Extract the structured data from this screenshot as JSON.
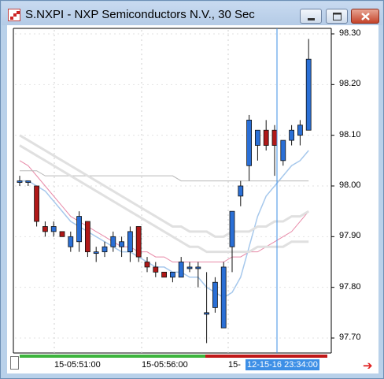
{
  "window": {
    "title": "S.NXPI - NXP Semiconductors N.V., 30 Sec",
    "icons": {
      "app": "chart-app-icon",
      "minimize": "minimize-icon",
      "maximize": "maximize-icon",
      "close": "close-icon"
    }
  },
  "axis": {
    "price_labels": [
      "98.30",
      "98.20",
      "98.10",
      "98.00",
      "97.90",
      "97.80",
      "97.70"
    ],
    "time_labels": [
      "15-05:51:00",
      "15-05:56:00",
      "15-"
    ],
    "cursor_time": "12-15-16 23:34:00",
    "next_icon": "arrow-right-icon"
  },
  "colors": {
    "up": "#2a6fd6",
    "down": "#b01818",
    "cursor_line": "#3d8fe6",
    "ma_pink": "#e88aa8",
    "ma_light_blue": "#a6c8ec",
    "ma_gray": "#b8b8b8",
    "timebar_green": "#3db43d",
    "timebar_red": "#c01818"
  },
  "chart_data": {
    "type": "candlestick",
    "price_range": [
      97.68,
      98.31
    ],
    "cursor_bar": 30,
    "candles": [
      {
        "o": 98.01,
        "h": 98.02,
        "l": 98.0,
        "c": 98.01
      },
      {
        "o": 98.01,
        "h": 98.01,
        "l": 98.0,
        "c": 98.01
      },
      {
        "o": 98.0,
        "h": 98.0,
        "l": 97.92,
        "c": 97.93
      },
      {
        "o": 97.92,
        "h": 97.93,
        "l": 97.9,
        "c": 97.91
      },
      {
        "o": 97.91,
        "h": 97.93,
        "l": 97.9,
        "c": 97.92
      },
      {
        "o": 97.91,
        "h": 97.91,
        "l": 97.9,
        "c": 97.9
      },
      {
        "o": 97.88,
        "h": 97.91,
        "l": 97.87,
        "c": 97.9
      },
      {
        "o": 97.89,
        "h": 97.95,
        "l": 97.87,
        "c": 97.94
      },
      {
        "o": 97.93,
        "h": 97.93,
        "l": 97.86,
        "c": 97.87
      },
      {
        "o": 97.87,
        "h": 97.88,
        "l": 97.85,
        "c": 97.87
      },
      {
        "o": 97.87,
        "h": 97.89,
        "l": 97.86,
        "c": 97.88
      },
      {
        "o": 97.88,
        "h": 97.91,
        "l": 97.87,
        "c": 97.9
      },
      {
        "o": 97.88,
        "h": 97.9,
        "l": 97.86,
        "c": 97.89
      },
      {
        "o": 97.87,
        "h": 97.92,
        "l": 97.85,
        "c": 97.91
      },
      {
        "o": 97.92,
        "h": 97.92,
        "l": 97.85,
        "c": 97.86
      },
      {
        "o": 97.85,
        "h": 97.86,
        "l": 97.83,
        "c": 97.84
      },
      {
        "o": 97.84,
        "h": 97.85,
        "l": 97.82,
        "c": 97.83
      },
      {
        "o": 97.83,
        "h": 97.83,
        "l": 97.82,
        "c": 97.82
      },
      {
        "o": 97.82,
        "h": 97.83,
        "l": 97.81,
        "c": 97.83
      },
      {
        "o": 97.82,
        "h": 97.86,
        "l": 97.82,
        "c": 97.85
      },
      {
        "o": 97.84,
        "h": 97.85,
        "l": 97.83,
        "c": 97.84
      },
      {
        "o": 97.84,
        "h": 97.85,
        "l": 97.8,
        "c": 97.84
      },
      {
        "o": 97.75,
        "h": 97.83,
        "l": 97.69,
        "c": 97.75
      },
      {
        "o": 97.76,
        "h": 97.82,
        "l": 97.75,
        "c": 97.81
      },
      {
        "o": 97.72,
        "h": 97.85,
        "l": 97.72,
        "c": 97.84
      },
      {
        "o": 97.88,
        "h": 97.95,
        "l": 97.83,
        "c": 97.95
      },
      {
        "o": 97.98,
        "h": 98.01,
        "l": 97.96,
        "c": 98.0
      },
      {
        "o": 98.04,
        "h": 98.14,
        "l": 98.01,
        "c": 98.13
      },
      {
        "o": 98.08,
        "h": 98.11,
        "l": 98.05,
        "c": 98.11
      },
      {
        "o": 98.11,
        "h": 98.13,
        "l": 98.07,
        "c": 98.08
      },
      {
        "o": 98.11,
        "h": 98.12,
        "l": 98.02,
        "c": 98.08
      },
      {
        "o": 98.05,
        "h": 98.09,
        "l": 98.04,
        "c": 98.09
      },
      {
        "o": 98.09,
        "h": 98.12,
        "l": 98.08,
        "c": 98.11
      },
      {
        "o": 98.1,
        "h": 98.13,
        "l": 98.08,
        "c": 98.12
      },
      {
        "o": 98.11,
        "h": 98.29,
        "l": 98.11,
        "c": 98.25
      }
    ],
    "moving_averages": [
      {
        "color": "pink",
        "values": [
          98.05,
          98.04,
          98.02,
          98.0,
          97.98,
          97.96,
          97.94,
          97.93,
          97.92,
          97.91,
          97.9,
          97.89,
          97.88,
          97.88,
          97.87,
          97.87,
          97.86,
          97.86,
          97.85,
          97.85,
          97.85,
          97.85,
          97.85,
          97.85,
          97.85,
          97.86,
          97.86,
          97.87,
          97.87,
          97.88,
          97.89,
          97.9,
          97.91,
          97.93,
          97.95
        ]
      },
      {
        "color": "light-blue",
        "values": [
          98.01,
          98.01,
          98.0,
          97.99,
          97.97,
          97.95,
          97.93,
          97.92,
          97.91,
          97.9,
          97.89,
          97.88,
          97.87,
          97.87,
          97.86,
          97.85,
          97.84,
          97.84,
          97.83,
          97.83,
          97.82,
          97.82,
          97.8,
          97.79,
          97.78,
          97.79,
          97.82,
          97.88,
          97.94,
          97.98,
          98.0,
          98.02,
          98.04,
          98.05,
          98.07
        ]
      },
      {
        "color": "gray",
        "values": [
          98.03,
          98.03,
          98.03,
          98.02,
          98.02,
          98.02,
          98.02,
          98.02,
          98.02,
          98.02,
          98.02,
          98.02,
          98.02,
          98.02,
          98.02,
          98.02,
          98.02,
          98.02,
          98.02,
          98.01,
          98.01,
          98.01,
          98.01,
          98.01,
          98.01,
          98.01,
          98.01,
          98.01,
          98.01,
          98.01,
          98.01,
          98.01,
          98.01,
          98.01,
          98.01
        ]
      },
      {
        "color": "light-gray",
        "values": [
          98.1,
          98.09,
          98.08,
          98.07,
          98.06,
          98.05,
          98.04,
          98.03,
          98.02,
          98.01,
          98.0,
          97.99,
          97.98,
          97.97,
          97.96,
          97.95,
          97.94,
          97.93,
          97.92,
          97.92,
          97.91,
          97.91,
          97.91,
          97.9,
          97.9,
          97.91,
          97.91,
          97.91,
          97.92,
          97.92,
          97.93,
          97.93,
          97.94,
          97.94,
          97.95
        ]
      },
      {
        "color": "light-gray",
        "values": [
          98.08,
          98.07,
          98.06,
          98.05,
          98.04,
          98.03,
          98.02,
          98.01,
          98.0,
          97.99,
          97.98,
          97.97,
          97.96,
          97.95,
          97.94,
          97.93,
          97.92,
          97.91,
          97.9,
          97.89,
          97.88,
          97.88,
          97.87,
          97.87,
          97.87,
          97.87,
          97.87,
          97.87,
          97.88,
          97.88,
          97.88,
          97.88,
          97.89,
          97.89,
          97.89
        ]
      }
    ]
  }
}
